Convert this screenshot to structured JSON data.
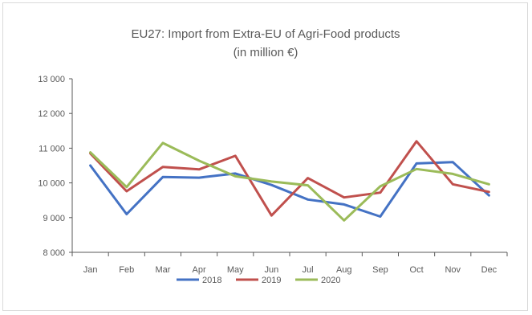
{
  "chart_data": {
    "type": "line",
    "title": "EU27: Import from Extra-EU of Agri-Food products",
    "subtitle": "(in million €)",
    "xlabel": "",
    "ylabel": "",
    "categories": [
      "Jan",
      "Feb",
      "Mar",
      "Apr",
      "May",
      "Jun",
      "Jul",
      "Aug",
      "Sep",
      "Oct",
      "Nov",
      "Dec"
    ],
    "ylim": [
      8000,
      13000
    ],
    "yticks": [
      8000,
      9000,
      10000,
      11000,
      12000,
      13000
    ],
    "ytick_labels": [
      "8 000",
      "9 000",
      "10 000",
      "11 000",
      "12 000",
      "13 000"
    ],
    "grid": false,
    "legend_position": "bottom",
    "series": [
      {
        "name": "2018",
        "color": "#4472c4",
        "values": [
          10500,
          9100,
          10170,
          10150,
          10270,
          9940,
          9520,
          9380,
          9030,
          10560,
          10600,
          9640
        ]
      },
      {
        "name": "2019",
        "color": "#c0504d",
        "values": [
          10850,
          9760,
          10460,
          10390,
          10780,
          9060,
          10140,
          9580,
          9720,
          11200,
          9960,
          9740
        ]
      },
      {
        "name": "2020",
        "color": "#9bbb59",
        "values": [
          10880,
          9880,
          11150,
          10640,
          10190,
          10040,
          9930,
          8920,
          9900,
          10400,
          10260,
          9960
        ]
      }
    ]
  }
}
